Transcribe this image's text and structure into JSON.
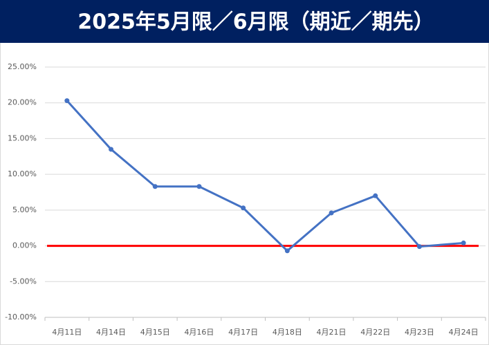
{
  "chart_data": {
    "type": "line",
    "title": "2025年5月限／6月限（期近／期先）",
    "categories": [
      "4月11日",
      "4月14日",
      "4月15日",
      "4月16日",
      "4月17日",
      "4月18日",
      "4月21日",
      "4月22日",
      "4月23日",
      "4月24日"
    ],
    "values": [
      20.3,
      13.5,
      8.3,
      8.3,
      5.3,
      -0.7,
      4.6,
      7.0,
      -0.1,
      0.4
    ],
    "color": "#4472c4",
    "title_background": "#002060",
    "zero_line_color": "#ff0000",
    "ylim": [
      -10,
      25
    ],
    "yticks": [
      {
        "value": -10,
        "label": "-10.00%"
      },
      {
        "value": -5,
        "label": "-5.00%"
      },
      {
        "value": 0,
        "label": "0.00%"
      },
      {
        "value": 5,
        "label": "5.00%"
      },
      {
        "value": 10,
        "label": "10.00%"
      },
      {
        "value": 15,
        "label": "15.00%"
      },
      {
        "value": 20,
        "label": "20.00%"
      },
      {
        "value": 25,
        "label": "25.00%"
      }
    ],
    "grid": true
  }
}
